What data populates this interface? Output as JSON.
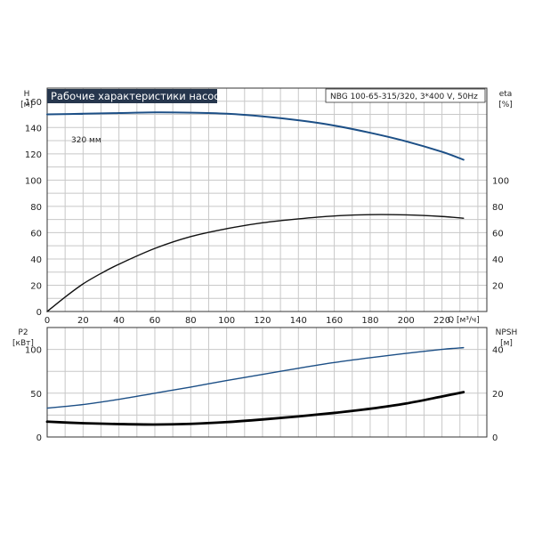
{
  "chart_data": [
    {
      "type": "line",
      "title": "Рабочие характеристики насоса",
      "subtitle": "NBG 100-65-315/320, 3*400 V, 50Hz",
      "xlabel": "Q [м³/ч]",
      "ylabel": {
        "name": "H",
        "unit": "[м]"
      },
      "y2label": {
        "name": "eta",
        "unit": "[%]"
      },
      "xlim": [
        0,
        245
      ],
      "ylim": [
        0,
        170
      ],
      "y2lim": [
        0,
        170
      ],
      "x_ticks": [
        0,
        20,
        40,
        60,
        80,
        100,
        120,
        140,
        160,
        180,
        200,
        220
      ],
      "y_ticks": [
        0,
        20,
        40,
        60,
        80,
        100,
        120,
        140,
        160
      ],
      "y2_ticks": [
        20,
        40,
        60,
        80,
        100
      ],
      "grid": true,
      "series": [
        {
          "name": "320 мм",
          "axis": "left",
          "color": "#1c4f86",
          "x": [
            0,
            20,
            40,
            60,
            80,
            100,
            120,
            140,
            160,
            180,
            200,
            220,
            232
          ],
          "y": [
            150,
            150.5,
            151,
            151.5,
            151.3,
            150.5,
            148.5,
            145.5,
            141.5,
            136,
            129.5,
            121.5,
            115.5
          ]
        },
        {
          "axis": "right",
          "color": "#111111",
          "x": [
            0,
            10,
            20,
            30,
            40,
            60,
            80,
            100,
            120,
            140,
            160,
            180,
            200,
            220,
            232
          ],
          "y": [
            0,
            11,
            21,
            29,
            36,
            48,
            57,
            63,
            67.5,
            70.5,
            72.7,
            73.7,
            73.5,
            72.3,
            71
          ]
        }
      ]
    },
    {
      "type": "line",
      "ylabel": {
        "name": "P2",
        "unit": "[кВт]"
      },
      "y2label": {
        "name": "NPSH",
        "unit": "[м]"
      },
      "xlim": [
        0,
        245
      ],
      "ylim": [
        0,
        125
      ],
      "y2lim": [
        0,
        50
      ],
      "y_ticks": [
        0,
        50,
        100
      ],
      "y2_ticks": [
        0,
        20,
        40
      ],
      "grid": true,
      "series": [
        {
          "axis": "left",
          "color": "#1c4f86",
          "x": [
            0,
            20,
            40,
            60,
            80,
            100,
            120,
            140,
            160,
            180,
            200,
            220,
            232
          ],
          "y": [
            33,
            37,
            43,
            50,
            57,
            64.5,
            71.5,
            78.5,
            85,
            90.5,
            95.5,
            100,
            102
          ]
        },
        {
          "axis": "right",
          "color": "#000000",
          "x": [
            0,
            20,
            40,
            60,
            80,
            100,
            120,
            140,
            160,
            180,
            200,
            220,
            232
          ],
          "y": [
            7,
            6.3,
            5.9,
            5.7,
            6,
            6.8,
            8,
            9.4,
            11,
            12.9,
            15.3,
            18.5,
            20.5
          ]
        }
      ]
    }
  ]
}
